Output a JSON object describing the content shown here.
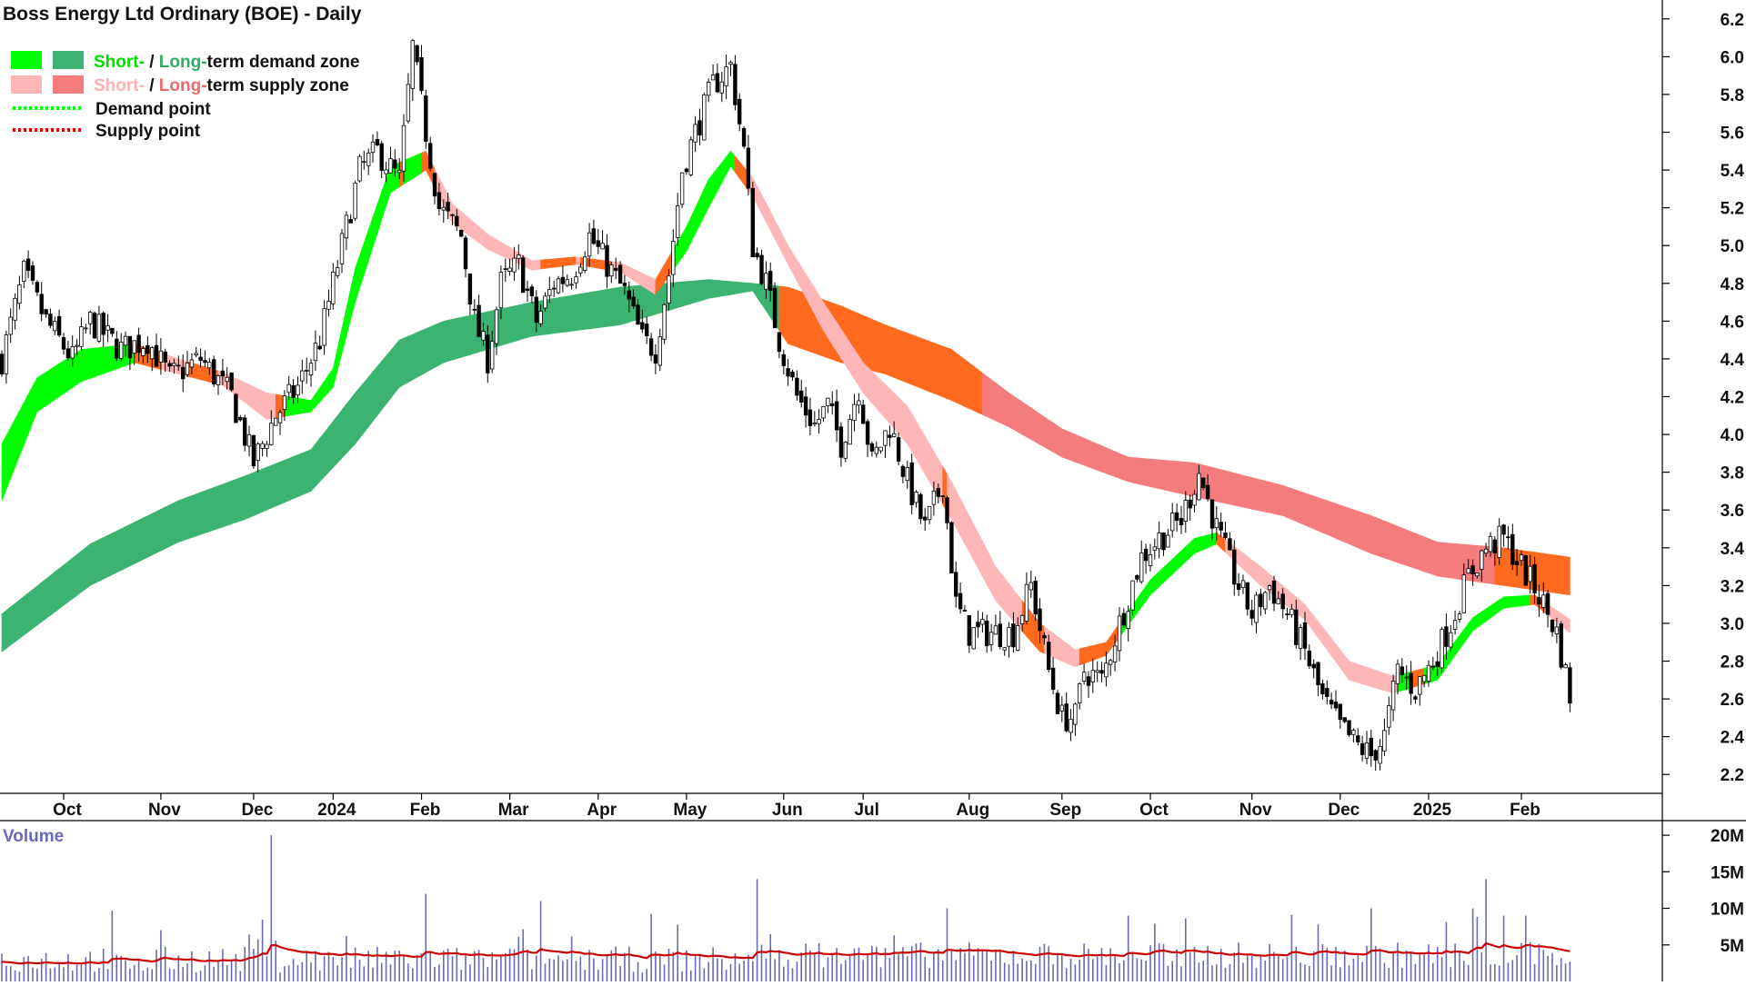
{
  "chart_data": [
    {
      "type": "candlestick",
      "title": "Boss Energy Ltd Ordinary (BOE) - Daily",
      "legend": {
        "placement": "top-left",
        "demand_short": "Short-",
        "demand_sep": " / ",
        "demand_long": "Long-",
        "demand_rest": "term demand zone",
        "supply_short": "Short-",
        "supply_sep": " / ",
        "supply_long": "Long-",
        "supply_rest": "term supply zone",
        "demand_point": "Demand point",
        "supply_point": "Supply point"
      },
      "colors": {
        "short_demand": "#00ff00",
        "long_demand": "#3cb371",
        "short_supply": "#ffb6b6",
        "long_supply": "#f47c7c",
        "transition_zone": "#ff6a1f",
        "demand_point": "#00ff00",
        "supply_point": "#dd0000",
        "candle": "#000000"
      },
      "y_axis": {
        "ylim": [
          2.1,
          6.3
        ],
        "ticks": [
          "2.2",
          "2.4",
          "2.6",
          "2.8",
          "3.0",
          "3.2",
          "3.4",
          "3.6",
          "3.8",
          "4.0",
          "4.2",
          "4.4",
          "4.6",
          "4.8",
          "5.0",
          "5.2",
          "5.4",
          "5.6",
          "5.8",
          "6.0",
          "6.2"
        ]
      },
      "x_axis": {
        "xlim": [
          0,
          365
        ],
        "ticks": [
          {
            "label": "Oct",
            "x": 14
          },
          {
            "label": "Nov",
            "x": 36
          },
          {
            "label": "Dec",
            "x": 57
          },
          {
            "label": "2024",
            "x": 75
          },
          {
            "label": "Feb",
            "x": 95
          },
          {
            "label": "Mar",
            "x": 115
          },
          {
            "label": "Apr",
            "x": 135
          },
          {
            "label": "May",
            "x": 155
          },
          {
            "label": "Jun",
            "x": 177
          },
          {
            "label": "Jul",
            "x": 195
          },
          {
            "label": "Aug",
            "x": 219
          },
          {
            "label": "Sep",
            "x": 240
          },
          {
            "label": "Oct",
            "x": 260
          },
          {
            "label": "Nov",
            "x": 283
          },
          {
            "label": "Dec",
            "x": 303
          },
          {
            "label": "2025",
            "x": 323
          },
          {
            "label": "Feb",
            "x": 344
          }
        ]
      },
      "price_anchors": [
        [
          0,
          4.4
        ],
        [
          5,
          4.85
        ],
        [
          10,
          4.6
        ],
        [
          16,
          4.4
        ],
        [
          20,
          4.6
        ],
        [
          27,
          4.45
        ],
        [
          33,
          4.5
        ],
        [
          38,
          4.3
        ],
        [
          45,
          4.4
        ],
        [
          52,
          4.2
        ],
        [
          57,
          3.85
        ],
        [
          62,
          4.1
        ],
        [
          67,
          4.25
        ],
        [
          72,
          4.5
        ],
        [
          77,
          5.0
        ],
        [
          81,
          5.4
        ],
        [
          85,
          5.5
        ],
        [
          90,
          5.35
        ],
        [
          93,
          6.05
        ],
        [
          96,
          5.6
        ],
        [
          99,
          5.2
        ],
        [
          104,
          5.05
        ],
        [
          107,
          4.6
        ],
        [
          110,
          4.4
        ],
        [
          113,
          4.8
        ],
        [
          117,
          4.9
        ],
        [
          121,
          4.6
        ],
        [
          125,
          4.8
        ],
        [
          129,
          4.85
        ],
        [
          133,
          5.05
        ],
        [
          137,
          4.9
        ],
        [
          141,
          4.75
        ],
        [
          145,
          4.5
        ],
        [
          148,
          4.45
        ],
        [
          151,
          4.85
        ],
        [
          154,
          5.4
        ],
        [
          157,
          5.6
        ],
        [
          161,
          5.85
        ],
        [
          165,
          5.95
        ],
        [
          168,
          5.5
        ],
        [
          170,
          5.0
        ],
        [
          173,
          4.8
        ],
        [
          176,
          4.5
        ],
        [
          180,
          4.2
        ],
        [
          184,
          4.05
        ],
        [
          187,
          4.15
        ],
        [
          190,
          3.95
        ],
        [
          194,
          4.25
        ],
        [
          197,
          3.85
        ],
        [
          201,
          4.05
        ],
        [
          205,
          3.75
        ],
        [
          209,
          3.5
        ],
        [
          213,
          3.75
        ],
        [
          216,
          3.1
        ],
        [
          219,
          2.95
        ],
        [
          224,
          2.95
        ],
        [
          229,
          2.95
        ],
        [
          233,
          3.2
        ],
        [
          237,
          2.75
        ],
        [
          240,
          2.5
        ],
        [
          243,
          2.5
        ],
        [
          245,
          2.75
        ],
        [
          249,
          2.7
        ],
        [
          253,
          3.0
        ],
        [
          258,
          3.35
        ],
        [
          262,
          3.45
        ],
        [
          267,
          3.55
        ],
        [
          271,
          3.8
        ],
        [
          275,
          3.5
        ],
        [
          279,
          3.25
        ],
        [
          283,
          3.05
        ],
        [
          287,
          3.2
        ],
        [
          291,
          3.05
        ],
        [
          295,
          2.85
        ],
        [
          299,
          2.6
        ],
        [
          303,
          2.45
        ],
        [
          307,
          2.35
        ],
        [
          310,
          2.3
        ],
        [
          313,
          2.4
        ],
        [
          316,
          2.75
        ],
        [
          320,
          2.65
        ],
        [
          324,
          2.8
        ],
        [
          328,
          3.0
        ],
        [
          332,
          3.25
        ],
        [
          336,
          3.4
        ],
        [
          340,
          3.45
        ],
        [
          344,
          3.3
        ],
        [
          348,
          3.15
        ],
        [
          352,
          2.95
        ],
        [
          355,
          2.62
        ]
      ],
      "long_zone": [
        [
          0,
          2.85,
          3.05
        ],
        [
          20,
          3.2,
          3.42
        ],
        [
          40,
          3.43,
          3.65
        ],
        [
          55,
          3.55,
          3.78
        ],
        [
          70,
          3.7,
          3.92
        ],
        [
          80,
          3.95,
          4.22
        ],
        [
          90,
          4.25,
          4.5
        ],
        [
          100,
          4.38,
          4.6
        ],
        [
          120,
          4.52,
          4.7
        ],
        [
          140,
          4.58,
          4.78
        ],
        [
          160,
          4.72,
          4.82
        ],
        [
          170,
          4.76,
          4.8
        ],
        [
          178,
          4.48,
          4.78
        ],
        [
          190,
          4.38,
          4.68
        ],
        [
          200,
          4.32,
          4.58
        ],
        [
          215,
          4.18,
          4.45
        ],
        [
          228,
          4.04,
          4.22
        ],
        [
          240,
          3.88,
          4.03
        ],
        [
          255,
          3.75,
          3.88
        ],
        [
          270,
          3.67,
          3.85
        ],
        [
          290,
          3.57,
          3.73
        ],
        [
          310,
          3.37,
          3.57
        ],
        [
          325,
          3.25,
          3.43
        ],
        [
          340,
          3.2,
          3.4
        ],
        [
          355,
          3.15,
          3.35
        ]
      ],
      "short_zone": [
        [
          0,
          3.65,
          3.95
        ],
        [
          8,
          4.12,
          4.3
        ],
        [
          18,
          4.28,
          4.45
        ],
        [
          30,
          4.38,
          4.48
        ],
        [
          40,
          4.32,
          4.4
        ],
        [
          50,
          4.26,
          4.33
        ],
        [
          60,
          4.08,
          4.22
        ],
        [
          70,
          4.12,
          4.18
        ],
        [
          75,
          4.25,
          4.35
        ],
        [
          80,
          4.7,
          4.88
        ],
        [
          88,
          5.28,
          5.42
        ],
        [
          96,
          5.4,
          5.5
        ],
        [
          102,
          5.12,
          5.22
        ],
        [
          110,
          4.98,
          5.06
        ],
        [
          120,
          4.87,
          4.92
        ],
        [
          130,
          4.9,
          4.94
        ],
        [
          140,
          4.86,
          4.91
        ],
        [
          148,
          4.74,
          4.82
        ],
        [
          155,
          4.97,
          5.1
        ],
        [
          160,
          5.2,
          5.35
        ],
        [
          165,
          5.42,
          5.5
        ],
        [
          170,
          5.26,
          5.36
        ],
        [
          178,
          4.9,
          5.0
        ],
        [
          186,
          4.55,
          4.7
        ],
        [
          195,
          4.22,
          4.38
        ],
        [
          205,
          3.95,
          4.15
        ],
        [
          215,
          3.55,
          3.75
        ],
        [
          225,
          3.12,
          3.3
        ],
        [
          235,
          2.85,
          3.0
        ],
        [
          243,
          2.77,
          2.86
        ],
        [
          250,
          2.83,
          2.9
        ],
        [
          260,
          3.15,
          3.23
        ],
        [
          270,
          3.37,
          3.45
        ],
        [
          275,
          3.42,
          3.48
        ],
        [
          285,
          3.2,
          3.3
        ],
        [
          295,
          3.02,
          3.1
        ],
        [
          305,
          2.7,
          2.8
        ],
        [
          315,
          2.63,
          2.72
        ],
        [
          325,
          2.7,
          2.78
        ],
        [
          333,
          2.96,
          3.03
        ],
        [
          340,
          3.08,
          3.14
        ],
        [
          347,
          3.1,
          3.15
        ],
        [
          355,
          2.95,
          3.02
        ]
      ],
      "volume_panel": {
        "label": "Volume",
        "ylim": [
          0,
          22
        ],
        "ticks": [
          "5M",
          "10M",
          "15M",
          "20M"
        ],
        "bar_color": "#6a6aba",
        "avg_color": "#cc0000",
        "spikes": [
          [
            61,
            20
          ],
          [
            96,
            12
          ],
          [
            122,
            11
          ],
          [
            171,
            14
          ],
          [
            214,
            10
          ],
          [
            255,
            9
          ],
          [
            310,
            10
          ],
          [
            336,
            14
          ],
          [
            333,
            10
          ],
          [
            340,
            9
          ]
        ]
      }
    }
  ]
}
